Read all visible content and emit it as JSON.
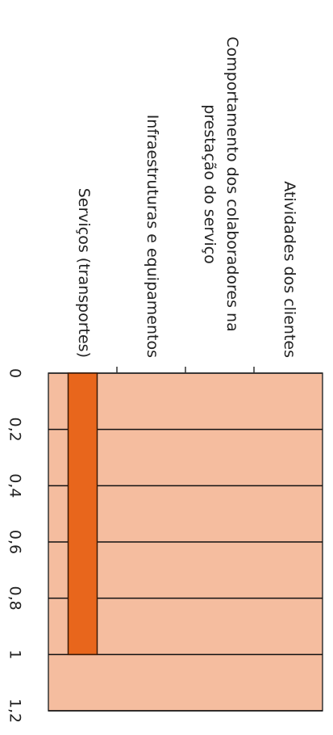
{
  "chart_data": {
    "type": "bar",
    "categories": [
      "Atividades dos clientes",
      "Comportamento dos colaboradores na prestação do serviço",
      "Infraestruturas e equipamentos",
      "Serviços (transportes)"
    ],
    "values": [
      0,
      0,
      0,
      1
    ],
    "color": "#e8661c",
    "background": "#f5bd9f",
    "ylim": [
      0,
      1.2
    ],
    "yticks": [
      0,
      {
        "value": 0.2,
        "label": "0,2"
      },
      {
        "value": 0.4,
        "label": "0,4"
      },
      {
        "value": 0.6,
        "label": "0,6"
      },
      {
        "value": 0.8,
        "label": "0,8"
      },
      1,
      {
        "value": 1.2,
        "label": "1,2"
      }
    ],
    "grid": true
  }
}
